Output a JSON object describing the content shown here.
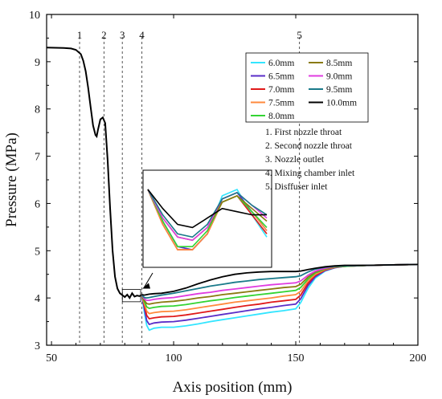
{
  "chart_data": {
    "type": "line",
    "xlabel": "Axis position (mm)",
    "ylabel": "Pressure (MPa)",
    "xlim": [
      48,
      200
    ],
    "ylim": [
      3,
      10
    ],
    "xticks": [
      50,
      100,
      150,
      200
    ],
    "yticks": [
      3,
      4,
      5,
      6,
      7,
      8,
      9,
      10
    ],
    "grid": false,
    "legend_position": "top-right",
    "section_markers": [
      {
        "label": "1",
        "x": 61.5
      },
      {
        "label": "2",
        "x": 71.5
      },
      {
        "label": "3",
        "x": 79
      },
      {
        "label": "4",
        "x": 87
      },
      {
        "label": "5",
        "x": 151.5
      }
    ],
    "annotations": [
      "1. First nozzle throat",
      "2. Second nozzle throat",
      "3. Nozzle outlet",
      "4. Mixing chamber inlet",
      "5. Disffuser inlet"
    ],
    "common_upstream": {
      "x": [
        48,
        55,
        58,
        60,
        62,
        63,
        64,
        65,
        66,
        67,
        68,
        68.5,
        69,
        70,
        71,
        72,
        73,
        74,
        75,
        76,
        77,
        78,
        79,
        80,
        81,
        82,
        83,
        84,
        85,
        86,
        87
      ],
      "y": [
        9.3,
        9.29,
        9.28,
        9.25,
        9.16,
        9.02,
        8.8,
        8.45,
        8.05,
        7.65,
        7.45,
        7.42,
        7.55,
        7.78,
        7.82,
        7.7,
        6.9,
        5.9,
        5.0,
        4.45,
        4.2,
        4.1,
        4.06,
        4.02,
        4.07,
        4.0,
        4.1,
        4.03,
        4.05,
        4.04,
        4.06
      ]
    },
    "x": [
      87,
      88,
      89,
      90,
      92,
      95,
      100,
      105,
      110,
      115,
      120,
      125,
      130,
      135,
      140,
      145,
      150,
      152,
      155,
      158,
      162,
      166,
      170,
      180,
      190,
      200
    ],
    "series": [
      {
        "name": "6.0mm",
        "color": "#33e5ff",
        "values": [
          4.05,
          3.7,
          3.42,
          3.32,
          3.36,
          3.38,
          3.38,
          3.41,
          3.45,
          3.5,
          3.54,
          3.58,
          3.62,
          3.66,
          3.7,
          3.73,
          3.77,
          3.9,
          4.2,
          4.42,
          4.57,
          4.64,
          4.67,
          4.69,
          4.7,
          4.71
        ]
      },
      {
        "name": "6.5mm",
        "color": "#5a2dc8",
        "values": [
          4.05,
          3.78,
          3.52,
          3.44,
          3.47,
          3.49,
          3.5,
          3.53,
          3.57,
          3.61,
          3.65,
          3.69,
          3.73,
          3.77,
          3.8,
          3.84,
          3.87,
          3.98,
          4.26,
          4.45,
          4.58,
          4.64,
          4.67,
          4.69,
          4.7,
          4.71
        ]
      },
      {
        "name": "7.0mm",
        "color": "#e01a1a",
        "values": [
          4.05,
          3.84,
          3.63,
          3.56,
          3.58,
          3.6,
          3.61,
          3.64,
          3.68,
          3.72,
          3.76,
          3.8,
          3.84,
          3.87,
          3.91,
          3.94,
          3.97,
          4.06,
          4.31,
          4.48,
          4.59,
          4.65,
          4.67,
          4.69,
          4.7,
          4.71
        ]
      },
      {
        "name": "7.5mm",
        "color": "#ff8a3d",
        "values": [
          4.05,
          3.88,
          3.72,
          3.67,
          3.69,
          3.71,
          3.72,
          3.75,
          3.79,
          3.83,
          3.87,
          3.91,
          3.94,
          3.97,
          4.0,
          4.04,
          4.07,
          4.14,
          4.36,
          4.5,
          4.6,
          4.65,
          4.67,
          4.69,
          4.7,
          4.71
        ]
      },
      {
        "name": "8.0mm",
        "color": "#33d433",
        "values": [
          4.05,
          3.92,
          3.81,
          3.78,
          3.8,
          3.82,
          3.83,
          3.86,
          3.9,
          3.94,
          3.97,
          4.01,
          4.04,
          4.07,
          4.1,
          4.13,
          4.16,
          4.22,
          4.4,
          4.53,
          4.61,
          4.66,
          4.67,
          4.69,
          4.7,
          4.71
        ]
      },
      {
        "name": "8.5mm",
        "color": "#8a7a10",
        "values": [
          4.05,
          3.95,
          3.88,
          3.87,
          3.89,
          3.91,
          3.93,
          3.96,
          4.0,
          4.03,
          4.07,
          4.1,
          4.13,
          4.16,
          4.19,
          4.22,
          4.24,
          4.29,
          4.44,
          4.55,
          4.62,
          4.66,
          4.68,
          4.69,
          4.7,
          4.71
        ]
      },
      {
        "name": "9.0mm",
        "color": "#e03ce0",
        "values": [
          4.06,
          3.98,
          3.95,
          3.95,
          3.97,
          3.99,
          4.01,
          4.05,
          4.09,
          4.12,
          4.16,
          4.19,
          4.22,
          4.25,
          4.28,
          4.3,
          4.32,
          4.36,
          4.48,
          4.57,
          4.63,
          4.67,
          4.68,
          4.69,
          4.7,
          4.71
        ]
      },
      {
        "name": "9.5mm",
        "color": "#1a7a8a",
        "values": [
          4.06,
          4.01,
          4.0,
          4.01,
          4.03,
          4.06,
          4.1,
          4.15,
          4.2,
          4.25,
          4.29,
          4.33,
          4.36,
          4.39,
          4.41,
          4.43,
          4.45,
          4.47,
          4.55,
          4.61,
          4.65,
          4.67,
          4.68,
          4.69,
          4.7,
          4.71
        ]
      },
      {
        "name": "10.0mm",
        "color": "#000000",
        "values": [
          4.07,
          4.06,
          4.07,
          4.08,
          4.09,
          4.1,
          4.14,
          4.21,
          4.3,
          4.38,
          4.45,
          4.5,
          4.53,
          4.55,
          4.56,
          4.56,
          4.56,
          4.57,
          4.6,
          4.63,
          4.66,
          4.68,
          4.69,
          4.69,
          4.7,
          4.71
        ]
      }
    ],
    "inset": {
      "x": [
        79,
        80,
        81,
        82,
        83,
        84,
        85,
        86,
        87
      ],
      "series": [
        {
          "name": "6.0mm",
          "values": [
            4.12,
            4.02,
            3.94,
            3.93,
            3.98,
            4.1,
            4.12,
            4.04,
            3.97
          ]
        },
        {
          "name": "6.5mm",
          "values": [
            4.12,
            4.02,
            3.94,
            3.93,
            3.98,
            4.09,
            4.11,
            4.05,
            3.99
          ]
        },
        {
          "name": "7.0mm",
          "values": [
            4.12,
            4.01,
            3.93,
            3.93,
            3.98,
            4.08,
            4.1,
            4.04,
            3.98
          ]
        },
        {
          "name": "7.5mm",
          "values": [
            4.12,
            4.01,
            3.93,
            3.93,
            3.98,
            4.08,
            4.1,
            4.05,
            3.99
          ]
        },
        {
          "name": "8.0mm",
          "values": [
            4.12,
            4.02,
            3.94,
            3.94,
            3.99,
            4.08,
            4.1,
            4.05,
            4.0
          ]
        },
        {
          "name": "8.5mm",
          "values": [
            4.12,
            4.03,
            3.97,
            3.96,
            4.0,
            4.08,
            4.1,
            4.06,
            4.02
          ]
        },
        {
          "name": "9.0mm",
          "values": [
            4.12,
            4.03,
            3.97,
            3.96,
            4.0,
            4.09,
            4.11,
            4.07,
            4.03
          ]
        },
        {
          "name": "9.5mm",
          "values": [
            4.12,
            4.04,
            3.98,
            3.97,
            4.01,
            4.09,
            4.11,
            4.07,
            4.04
          ]
        },
        {
          "name": "10.0mm",
          "values": [
            4.12,
            4.06,
            4.01,
            4.0,
            4.03,
            4.06,
            4.05,
            4.04,
            4.04
          ]
        }
      ]
    }
  }
}
